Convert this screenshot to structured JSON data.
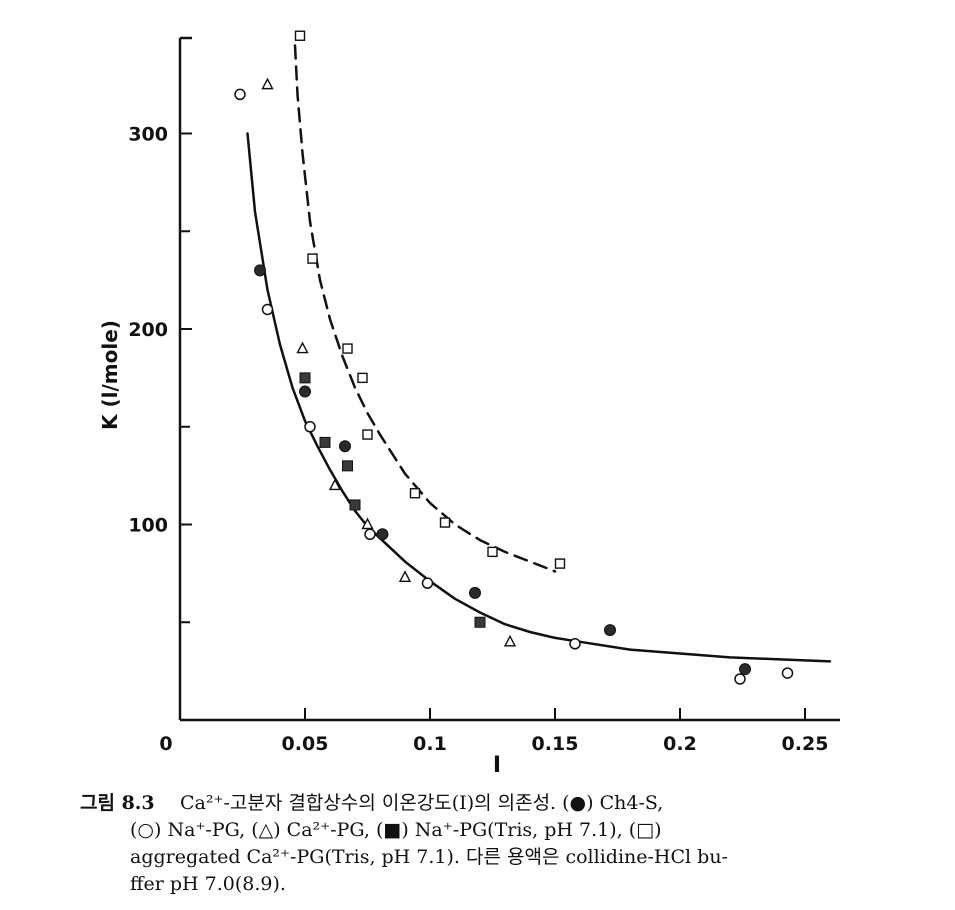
{
  "chart_data": {
    "type": "scatter",
    "xlabel": "I",
    "ylabel": "K (l/mole)",
    "xlim": [
      0,
      0.26
    ],
    "ylim": [
      0,
      350
    ],
    "x_ticks": [
      {
        "value": 0,
        "label": "0"
      },
      {
        "value": 0.05,
        "label": "0.05"
      },
      {
        "value": 0.1,
        "label": "0.1"
      },
      {
        "value": 0.15,
        "label": "0.15"
      },
      {
        "value": 0.2,
        "label": "0.2"
      },
      {
        "value": 0.25,
        "label": "0.25"
      }
    ],
    "y_ticks": [
      {
        "value": 100,
        "label": "100"
      },
      {
        "value": 200,
        "label": "200"
      },
      {
        "value": 300,
        "label": "300"
      }
    ],
    "y_minor_ticks": [
      50,
      150,
      250
    ],
    "series": [
      {
        "marker": "filled-circle",
        "x": [
          0.032,
          0.05,
          0.066,
          0.081,
          0.118,
          0.172,
          0.226
        ],
        "y": [
          230,
          168,
          140,
          95,
          65,
          46,
          26
        ]
      },
      {
        "marker": "open-circle",
        "x": [
          0.024,
          0.035,
          0.052,
          0.076,
          0.099,
          0.158,
          0.224,
          0.243
        ],
        "y": [
          320,
          210,
          150,
          95,
          70,
          39,
          21,
          24
        ]
      },
      {
        "marker": "open-triangle",
        "x": [
          0.035,
          0.049,
          0.062,
          0.075,
          0.09,
          0.132
        ],
        "y": [
          325,
          190,
          120,
          100,
          73,
          40
        ]
      },
      {
        "marker": "filled-square",
        "x": [
          0.05,
          0.058,
          0.067,
          0.07,
          0.12
        ],
        "y": [
          175,
          142,
          130,
          110,
          50
        ]
      },
      {
        "marker": "open-square",
        "x": [
          0.048,
          0.053,
          0.067,
          0.073,
          0.075,
          0.094,
          0.106,
          0.125,
          0.152
        ],
        "y": [
          350,
          236,
          190,
          175,
          146,
          116,
          101,
          86,
          80
        ]
      }
    ],
    "curves": [
      {
        "style": "solid",
        "x": [
          0.027,
          0.03,
          0.035,
          0.04,
          0.045,
          0.05,
          0.055,
          0.06,
          0.065,
          0.07,
          0.075,
          0.08,
          0.09,
          0.1,
          0.11,
          0.12,
          0.13,
          0.14,
          0.15,
          0.16,
          0.18,
          0.2,
          0.22,
          0.24,
          0.26
        ],
        "y": [
          300,
          260,
          220,
          192,
          170,
          153,
          140,
          128,
          117,
          107,
          99,
          93,
          81,
          71,
          62,
          55,
          49,
          45,
          42,
          40,
          36,
          34,
          32,
          31,
          30
        ]
      },
      {
        "style": "dashed",
        "x": [
          0.046,
          0.047,
          0.049,
          0.052,
          0.056,
          0.06,
          0.065,
          0.07,
          0.075,
          0.08,
          0.09,
          0.1,
          0.11,
          0.12,
          0.13,
          0.14,
          0.15
        ],
        "y": [
          345,
          320,
          290,
          255,
          225,
          205,
          186,
          170,
          157,
          146,
          126,
          111,
          100,
          92,
          86,
          81,
          76
        ]
      }
    ]
  },
  "caption": {
    "figure_label": "그림 8.3",
    "line1": "Ca²⁺-고분자 결합상수의 이온강도(Ⅰ)의 의존성. (●) Ch4-S,",
    "line2": "(○) Na⁺-PG, (△) Ca²⁺-PG, (■) Na⁺-PG(Tris, pH 7.1), (□)",
    "line3": "aggregated Ca²⁺-PG(Tris, pH 7.1). 다른 용액은 collidine-HCl bu-",
    "line4": "ffer pH 7.0(8.9)."
  }
}
